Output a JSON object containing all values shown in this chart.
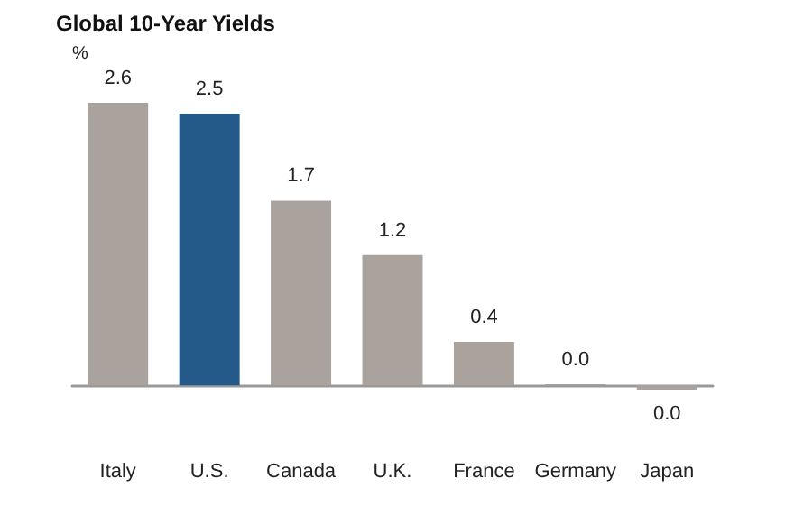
{
  "chart_data": {
    "type": "bar",
    "title": "Global 10-Year Yields",
    "ylabel": "%",
    "categories": [
      "Italy",
      "U.S.",
      "Canada",
      "U.K.",
      "France",
      "Germany",
      "Japan"
    ],
    "values": [
      2.6,
      2.5,
      1.7,
      1.2,
      0.4,
      0.01,
      -0.04
    ],
    "value_labels": [
      "2.6",
      "2.5",
      "1.7",
      "1.2",
      "0.4",
      "0.0",
      "0.0"
    ],
    "colors": [
      "#aaa29c",
      "#245a8a",
      "#aaa29c",
      "#aaa29c",
      "#aaa29c",
      "#aaa29c",
      "#aaa29c"
    ],
    "orientation": "vertical"
  }
}
